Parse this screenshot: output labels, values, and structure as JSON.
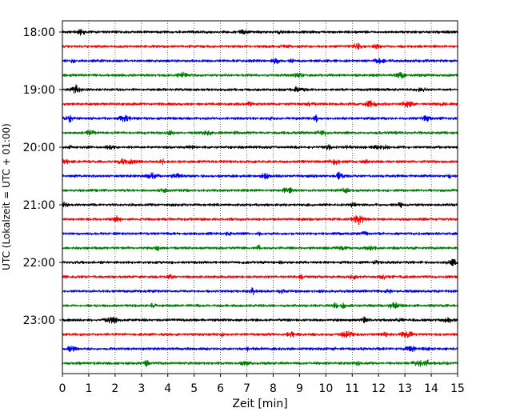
{
  "chart_data": {
    "type": "line",
    "title": "",
    "xlabel": "Zeit  [min]",
    "ylabel": "UTC (Lokalzeit = UTC + 01:00)",
    "xlim": [
      0,
      15
    ],
    "x_ticks": [
      "0",
      "1",
      "2",
      "3",
      "4",
      "5",
      "6",
      "7",
      "8",
      "9",
      "10",
      "11",
      "12",
      "13",
      "14",
      "15"
    ],
    "y_ticks": [
      "18:00",
      "19:00",
      "20:00",
      "21:00",
      "22:00",
      "23:00"
    ],
    "grid": "vertical dotted lines at each minute",
    "legend": "none",
    "trace_interval_minutes": 15,
    "colors": [
      "#000000",
      "#ff0000",
      "#0000ff",
      "#008000"
    ],
    "series": [
      {
        "start": "18:00",
        "color": "#000000"
      },
      {
        "start": "18:15",
        "color": "#ff0000"
      },
      {
        "start": "18:30",
        "color": "#0000ff"
      },
      {
        "start": "18:45",
        "color": "#008000"
      },
      {
        "start": "19:00",
        "color": "#000000"
      },
      {
        "start": "19:15",
        "color": "#ff0000"
      },
      {
        "start": "19:30",
        "color": "#0000ff"
      },
      {
        "start": "19:45",
        "color": "#008000"
      },
      {
        "start": "20:00",
        "color": "#000000"
      },
      {
        "start": "20:15",
        "color": "#ff0000"
      },
      {
        "start": "20:30",
        "color": "#0000ff"
      },
      {
        "start": "20:45",
        "color": "#008000"
      },
      {
        "start": "21:00",
        "color": "#000000"
      },
      {
        "start": "21:15",
        "color": "#ff0000"
      },
      {
        "start": "21:30",
        "color": "#0000ff"
      },
      {
        "start": "21:45",
        "color": "#008000"
      },
      {
        "start": "22:00",
        "color": "#000000"
      },
      {
        "start": "22:15",
        "color": "#ff0000"
      },
      {
        "start": "22:30",
        "color": "#0000ff"
      },
      {
        "start": "22:45",
        "color": "#008000"
      },
      {
        "start": "23:00",
        "color": "#000000"
      },
      {
        "start": "23:15",
        "color": "#ff0000"
      },
      {
        "start": "23:30",
        "color": "#0000ff"
      },
      {
        "start": "23:45",
        "color": "#008000"
      }
    ]
  }
}
